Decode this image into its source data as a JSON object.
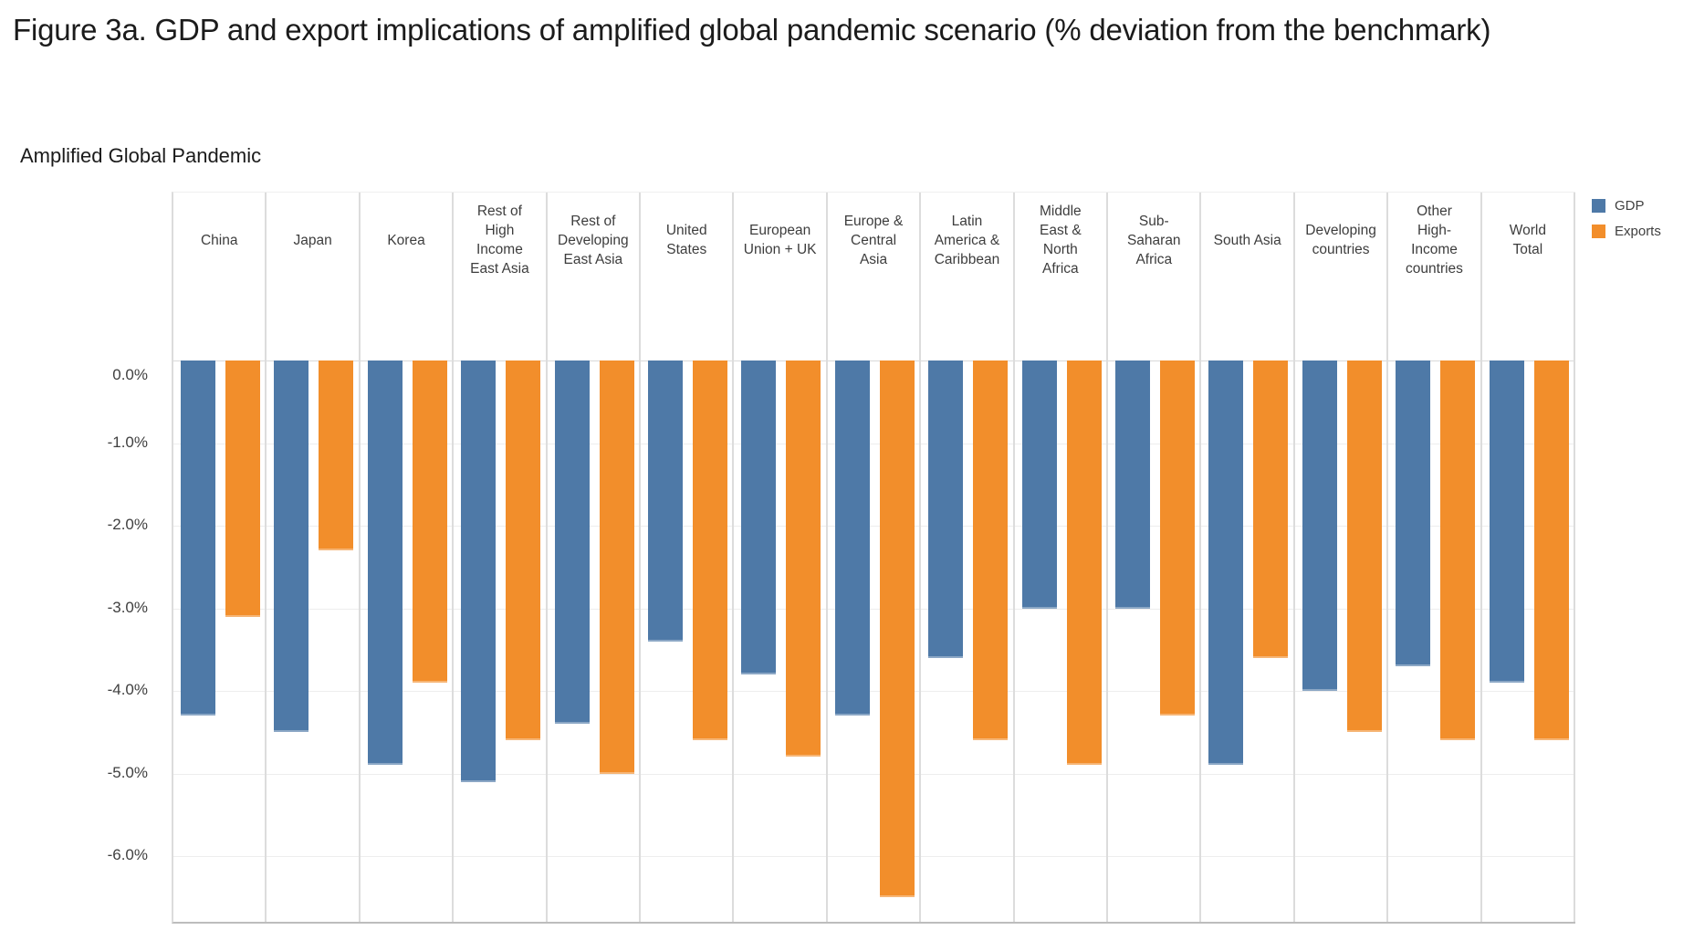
{
  "figure": {
    "title": "Figure 3a. GDP and export implications of amplified global pandemic scenario (% deviation from the benchmark)"
  },
  "chart_data": {
    "type": "bar",
    "title": "Amplified Global Pandemic",
    "orientation": "vertical",
    "unit": "%",
    "categories": [
      "China",
      "Japan",
      "Korea",
      "Rest of High Income East Asia",
      "Rest of Developing East Asia",
      "United States",
      "European Union + UK",
      "Europe & Central Asia",
      "Latin America & Caribbean",
      "Middle East & North Africa",
      "Sub-Saharan Africa",
      "South Asia",
      "Developing countries",
      "Other High-Income countries",
      "World Total"
    ],
    "categories_wrapped": [
      "China",
      "Japan",
      "Korea",
      "Rest of\nHigh\nIncome\nEast Asia",
      "Rest of\nDeveloping\nEast Asia",
      "United\nStates",
      "European\nUnion + UK",
      "Europe &\nCentral\nAsia",
      "Latin\nAmerica &\nCaribbean",
      "Middle\nEast &\nNorth\nAfrica",
      "Sub-\nSaharan\nAfrica",
      "South Asia",
      "Developing\ncountries",
      "Other\nHigh-\nIncome\ncountries",
      "World\nTotal"
    ],
    "series": [
      {
        "name": "GDP",
        "color": "#4e79a7",
        "values": [
          -4.3,
          -4.5,
          -4.9,
          -5.1,
          -4.4,
          -3.4,
          -3.8,
          -4.3,
          -3.6,
          -3.0,
          -3.0,
          -4.9,
          -4.0,
          -3.7,
          -3.9
        ]
      },
      {
        "name": "Exports",
        "color": "#f28e2b",
        "values": [
          -3.1,
          -2.3,
          -3.9,
          -4.6,
          -5.0,
          -4.6,
          -4.8,
          -6.5,
          -4.6,
          -4.9,
          -4.3,
          -3.6,
          -4.5,
          -4.6,
          -4.6
        ]
      }
    ],
    "yticks": [
      {
        "label": "0.0%",
        "value": 0
      },
      {
        "label": "-1.0%",
        "value": -1
      },
      {
        "label": "-2.0%",
        "value": -2
      },
      {
        "label": "-3.0%",
        "value": -3
      },
      {
        "label": "-4.0%",
        "value": -4
      },
      {
        "label": "-5.0%",
        "value": -5
      },
      {
        "label": "-6.0%",
        "value": -6
      }
    ],
    "ylim": [
      -6.8,
      0
    ],
    "grid": true,
    "legend_position": "top-right"
  }
}
